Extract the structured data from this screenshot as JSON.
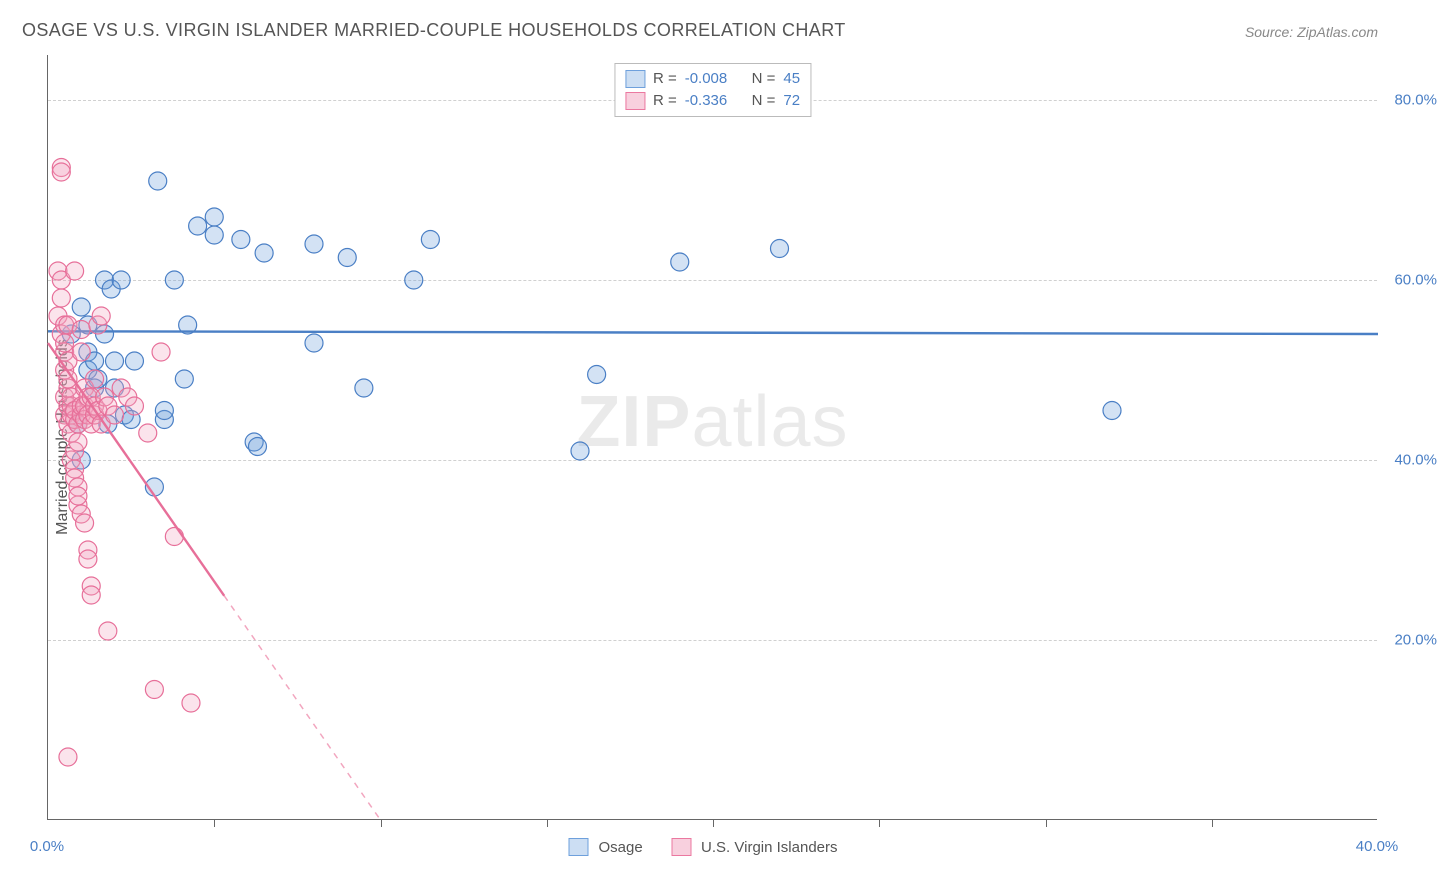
{
  "title": "OSAGE VS U.S. VIRGIN ISLANDER MARRIED-COUPLE HOUSEHOLDS CORRELATION CHART",
  "source_prefix": "Source: ",
  "source_name": "ZipAtlas.com",
  "watermark_a": "ZIP",
  "watermark_b": "atlas",
  "chart": {
    "type": "scatter",
    "background_color": "#ffffff",
    "grid_color": "#d0d0d0",
    "axis_color": "#666666",
    "title_fontsize": 18,
    "label_fontsize": 16,
    "tick_fontsize": 15,
    "tick_color": "#4a7fc5",
    "ylabel": "Married-couple Households",
    "xlim": [
      0,
      40
    ],
    "ylim": [
      0,
      85
    ],
    "ytick_values": [
      20,
      40,
      60,
      80
    ],
    "ytick_labels": [
      "20.0%",
      "40.0%",
      "60.0%",
      "80.0%"
    ],
    "xtick_values": [
      0,
      5,
      10,
      15,
      20,
      25,
      30,
      35,
      40
    ],
    "xtick_label_min": "0.0%",
    "xtick_label_max": "40.0%",
    "marker_radius": 9,
    "marker_fill_opacity": 0.3,
    "marker_stroke_width": 1.2,
    "trend_line_width": 2.4,
    "series": [
      {
        "name": "Osage",
        "color": "#6ea0dc",
        "stroke": "#4a7fc5",
        "r": "-0.008",
        "n": "45",
        "trend": {
          "x1": 0,
          "y1": 54.3,
          "x2": 40,
          "y2": 54.0,
          "dashed_from_x": null
        },
        "points": [
          [
            0.7,
            54
          ],
          [
            0.9,
            44
          ],
          [
            1.0,
            57
          ],
          [
            1.0,
            40
          ],
          [
            1.2,
            50
          ],
          [
            1.2,
            55
          ],
          [
            1.2,
            52
          ],
          [
            1.4,
            48
          ],
          [
            1.4,
            51
          ],
          [
            1.5,
            49
          ],
          [
            1.7,
            60
          ],
          [
            1.7,
            54
          ],
          [
            1.8,
            44
          ],
          [
            1.9,
            59
          ],
          [
            2.0,
            51
          ],
          [
            2.0,
            48
          ],
          [
            2.2,
            60
          ],
          [
            2.3,
            45
          ],
          [
            2.5,
            44.5
          ],
          [
            2.6,
            51
          ],
          [
            3.2,
            37
          ],
          [
            3.3,
            71
          ],
          [
            3.5,
            44.5
          ],
          [
            3.5,
            45.5
          ],
          [
            3.8,
            60
          ],
          [
            4.1,
            49
          ],
          [
            4.2,
            55
          ],
          [
            4.5,
            66
          ],
          [
            5.0,
            65
          ],
          [
            5.0,
            67
          ],
          [
            5.8,
            64.5
          ],
          [
            6.2,
            42
          ],
          [
            6.3,
            41.5
          ],
          [
            6.5,
            63
          ],
          [
            8.0,
            64
          ],
          [
            8.0,
            53
          ],
          [
            9.0,
            62.5
          ],
          [
            9.5,
            48
          ],
          [
            11.5,
            64.5
          ],
          [
            11.0,
            60
          ],
          [
            16.5,
            49.5
          ],
          [
            16.0,
            41
          ],
          [
            19,
            62
          ],
          [
            22,
            63.5
          ],
          [
            32,
            45.5
          ]
        ]
      },
      {
        "name": "U.S. Virgin Islanders",
        "color": "#f2a6bf",
        "stroke": "#e76f99",
        "r": "-0.336",
        "n": "72",
        "trend": {
          "x1": 0,
          "y1": 53,
          "x2": 10,
          "y2": 0,
          "dashed_from_x": 5.3
        },
        "points": [
          [
            0.3,
            56
          ],
          [
            0.3,
            61
          ],
          [
            0.4,
            72.5
          ],
          [
            0.4,
            72
          ],
          [
            0.4,
            60
          ],
          [
            0.4,
            58
          ],
          [
            0.4,
            54
          ],
          [
            0.5,
            52
          ],
          [
            0.5,
            53
          ],
          [
            0.5,
            55
          ],
          [
            0.5,
            50
          ],
          [
            0.5,
            47
          ],
          [
            0.5,
            45
          ],
          [
            0.6,
            48
          ],
          [
            0.6,
            46
          ],
          [
            0.6,
            44
          ],
          [
            0.6,
            49
          ],
          [
            0.6,
            55
          ],
          [
            0.6,
            51
          ],
          [
            0.7,
            43
          ],
          [
            0.7,
            45
          ],
          [
            0.7,
            40
          ],
          [
            0.7,
            46
          ],
          [
            0.7,
            47
          ],
          [
            0.8,
            44.5
          ],
          [
            0.8,
            45.5
          ],
          [
            0.8,
            41
          ],
          [
            0.8,
            39
          ],
          [
            0.8,
            38
          ],
          [
            0.9,
            37
          ],
          [
            0.9,
            35
          ],
          [
            0.9,
            36
          ],
          [
            0.9,
            42
          ],
          [
            0.9,
            44
          ],
          [
            1.0,
            45
          ],
          [
            1.0,
            34
          ],
          [
            1.0,
            46
          ],
          [
            1.0,
            52
          ],
          [
            1.0,
            54.5
          ],
          [
            1.1,
            33
          ],
          [
            1.1,
            48
          ],
          [
            1.1,
            44.5
          ],
          [
            1.1,
            46
          ],
          [
            1.2,
            30
          ],
          [
            1.2,
            29
          ],
          [
            1.2,
            47
          ],
          [
            1.2,
            45
          ],
          [
            1.3,
            47
          ],
          [
            1.3,
            44
          ],
          [
            1.3,
            26
          ],
          [
            1.3,
            25
          ],
          [
            1.4,
            45
          ],
          [
            1.4,
            46
          ],
          [
            1.4,
            49
          ],
          [
            1.5,
            45.5
          ],
          [
            1.5,
            55
          ],
          [
            1.6,
            44
          ],
          [
            1.6,
            56
          ],
          [
            1.7,
            47
          ],
          [
            1.8,
            46
          ],
          [
            1.8,
            21
          ],
          [
            2.0,
            45
          ],
          [
            2.2,
            48
          ],
          [
            2.4,
            47
          ],
          [
            2.6,
            46
          ],
          [
            3.0,
            43
          ],
          [
            3.2,
            14.5
          ],
          [
            3.4,
            52
          ],
          [
            3.8,
            31.5
          ],
          [
            4.3,
            13
          ],
          [
            0.6,
            7
          ],
          [
            0.8,
            61
          ]
        ]
      }
    ],
    "legend_top": {
      "r_label": "R =",
      "n_label": "N ="
    },
    "legend_bottom": {
      "items": [
        "Osage",
        "U.S. Virgin Islanders"
      ]
    }
  }
}
